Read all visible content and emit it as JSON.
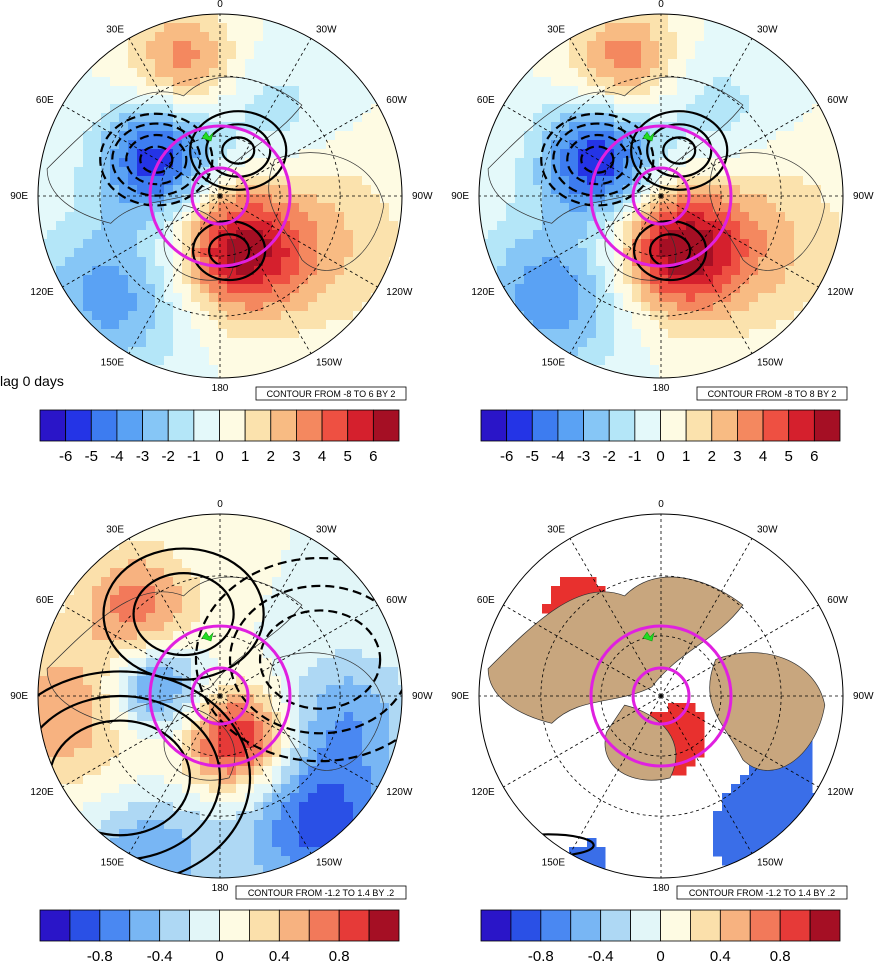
{
  "figure_label": "lag 0 days",
  "longitude_labels": [
    "0",
    "30W",
    "60W",
    "90W",
    "120W",
    "150W",
    "180",
    "150E",
    "120E",
    "90E",
    "60E",
    "30E"
  ],
  "colors": {
    "land": "#c8a67e",
    "circle": "#e020e0",
    "marker": "#22dd22",
    "palette_a": [
      "#2a15c8",
      "#2434e6",
      "#3d7cf0",
      "#5aa2f4",
      "#86c6f6",
      "#b4e6f8",
      "#e4f9fa",
      "#fefbe3",
      "#fbe2ad",
      "#f8bb83",
      "#f4885f",
      "#ee5042",
      "#d5202d",
      "#a50f24"
    ],
    "palette_b": [
      "#2a15c8",
      "#2a50e6",
      "#4a88f2",
      "#78b6f4",
      "#aed8f4",
      "#e2f6f8",
      "#fefbe3",
      "#fbe0ab",
      "#f7b280",
      "#f2795a",
      "#e63a38",
      "#a50f24"
    ]
  },
  "panels": [
    {
      "id": "top-left",
      "contour_info": "CONTOUR FROM -8 TO 6 BY 2",
      "colorbar_labels": [
        "-6",
        "-5",
        "-4",
        "-3",
        "-2",
        "-1",
        "0",
        "1",
        "2",
        "3",
        "4",
        "5",
        "6"
      ],
      "fill_type": "field",
      "field_scale": 7
    },
    {
      "id": "top-right",
      "contour_info": "CONTOUR FROM -8 TO 8 BY 2",
      "colorbar_labels": [
        "-6",
        "-5",
        "-4",
        "-3",
        "-2",
        "-1",
        "0",
        "1",
        "2",
        "3",
        "4",
        "5",
        "6"
      ],
      "fill_type": "field",
      "field_scale": 7
    },
    {
      "id": "bottom-left",
      "contour_info": "CONTOUR FROM -1.2 TO 1.4 BY .2",
      "colorbar_labels": [
        "-0.8",
        "-0.4",
        "0",
        "0.4",
        "0.8"
      ],
      "fill_type": "field",
      "field_scale": 1.2
    },
    {
      "id": "bottom-right",
      "contour_info": "CONTOUR FROM -1.2 TO 1.4 BY .2",
      "colorbar_labels": [
        "-0.8",
        "-0.4",
        "0",
        "0.4",
        "0.8"
      ],
      "fill_type": "significance",
      "field_scale": 1.2
    }
  ]
}
